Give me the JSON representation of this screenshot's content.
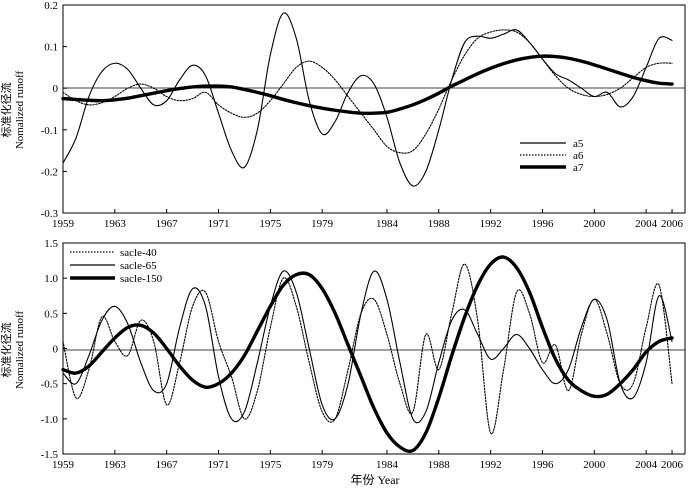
{
  "chart_data": [
    {
      "type": "line",
      "ylabel_cn": "标准化径流",
      "ylabel_en": "Nomalized runoff",
      "xlabel": "",
      "xlim": [
        1959,
        2007
      ],
      "ylim": [
        -0.3,
        0.2
      ],
      "xticks": [
        1959,
        1963,
        1967,
        1971,
        1975,
        1979,
        1984,
        1988,
        1992,
        1996,
        2000,
        2004,
        2006
      ],
      "yticks": [
        -0.3,
        -0.2,
        -0.1,
        0,
        0.1,
        0.2
      ],
      "ytick_labels": [
        "-0.3",
        "-0.2",
        "-0.1",
        "0",
        "0.1",
        "0.2"
      ],
      "legend_position": "lower-right",
      "series": [
        {
          "name": "a5",
          "style": "thin",
          "x": [
            1959,
            1960,
            1961,
            1962,
            1963,
            1964,
            1965,
            1966,
            1967,
            1968,
            1969,
            1970,
            1971,
            1972,
            1973,
            1974,
            1975,
            1976,
            1977,
            1978,
            1979,
            1980,
            1981,
            1982,
            1983,
            1984,
            1985,
            1986,
            1987,
            1988,
            1989,
            1990,
            1991,
            1992,
            1993,
            1994,
            1995,
            1996,
            1997,
            1998,
            1999,
            2000,
            2001,
            2002,
            2003,
            2004,
            2005,
            2006
          ],
          "y": [
            -0.18,
            -0.12,
            -0.02,
            0.04,
            0.06,
            0.045,
            0.0,
            -0.04,
            -0.03,
            0.02,
            0.055,
            0.03,
            -0.06,
            -0.15,
            -0.19,
            -0.1,
            0.08,
            0.18,
            0.12,
            -0.03,
            -0.11,
            -0.08,
            -0.01,
            0.03,
            0.01,
            -0.07,
            -0.18,
            -0.235,
            -0.2,
            -0.1,
            0.02,
            0.11,
            0.125,
            0.12,
            0.13,
            0.14,
            0.11,
            0.07,
            0.035,
            0.02,
            0.0,
            -0.02,
            -0.01,
            -0.045,
            -0.02,
            0.05,
            0.12,
            0.115
          ]
        },
        {
          "name": "a6",
          "style": "dotted",
          "x": [
            1959,
            1960,
            1961,
            1962,
            1963,
            1964,
            1965,
            1966,
            1967,
            1968,
            1969,
            1970,
            1971,
            1972,
            1973,
            1974,
            1975,
            1976,
            1977,
            1978,
            1979,
            1980,
            1981,
            1982,
            1983,
            1984,
            1985,
            1986,
            1987,
            1988,
            1989,
            1990,
            1991,
            1992,
            1993,
            1994,
            1995,
            1996,
            1997,
            1998,
            1999,
            2000,
            2001,
            2002,
            2003,
            2004,
            2005,
            2006
          ],
          "y": [
            -0.01,
            -0.03,
            -0.04,
            -0.035,
            -0.02,
            0.0,
            0.01,
            0.0,
            -0.02,
            -0.03,
            -0.025,
            -0.01,
            -0.04,
            -0.06,
            -0.07,
            -0.06,
            -0.03,
            0.01,
            0.05,
            0.065,
            0.05,
            0.02,
            -0.02,
            -0.06,
            -0.1,
            -0.14,
            -0.155,
            -0.15,
            -0.11,
            -0.05,
            0.02,
            0.08,
            0.12,
            0.135,
            0.14,
            0.135,
            0.11,
            0.07,
            0.03,
            0.0,
            -0.015,
            -0.02,
            -0.015,
            0.0,
            0.025,
            0.05,
            0.06,
            0.06
          ]
        },
        {
          "name": "a7",
          "style": "thick",
          "x": [
            1959,
            1960,
            1961,
            1962,
            1963,
            1964,
            1965,
            1966,
            1967,
            1968,
            1969,
            1970,
            1971,
            1972,
            1973,
            1974,
            1975,
            1976,
            1977,
            1978,
            1979,
            1980,
            1981,
            1982,
            1983,
            1984,
            1985,
            1986,
            1987,
            1988,
            1989,
            1990,
            1991,
            1992,
            1993,
            1994,
            1995,
            1996,
            1997,
            1998,
            1999,
            2000,
            2001,
            2002,
            2003,
            2004,
            2005,
            2006
          ],
          "y": [
            -0.025,
            -0.027,
            -0.029,
            -0.03,
            -0.028,
            -0.024,
            -0.018,
            -0.012,
            -0.006,
            -0.001,
            0.003,
            0.005,
            0.005,
            0.003,
            -0.003,
            -0.01,
            -0.018,
            -0.027,
            -0.035,
            -0.042,
            -0.048,
            -0.053,
            -0.057,
            -0.06,
            -0.06,
            -0.058,
            -0.05,
            -0.04,
            -0.027,
            -0.012,
            0.005,
            0.02,
            0.035,
            0.048,
            0.059,
            0.068,
            0.074,
            0.077,
            0.076,
            0.072,
            0.065,
            0.056,
            0.046,
            0.036,
            0.026,
            0.018,
            0.012,
            0.01
          ]
        }
      ]
    },
    {
      "type": "line",
      "ylabel_cn": "标准化径流",
      "ylabel_en": "Nomalized runoff",
      "xlabel": "年份 Year",
      "xlim": [
        1959,
        2007
      ],
      "ylim": [
        -1.5,
        1.5
      ],
      "xticks": [
        1959,
        1963,
        1967,
        1971,
        1975,
        1979,
        1984,
        1988,
        1992,
        1996,
        2000,
        2004,
        2006
      ],
      "yticks": [
        -1.5,
        -1.0,
        -0.5,
        0,
        0.5,
        1.0,
        1.5
      ],
      "ytick_labels": [
        "-1.5",
        "-1.0",
        "-0.5",
        "0",
        "0.5",
        "1.0",
        "1.5"
      ],
      "legend_position": "top-left",
      "series": [
        {
          "name": "sacle-40",
          "style": "dotted",
          "x": [
            1959,
            1960,
            1961,
            1962,
            1963,
            1964,
            1965,
            1966,
            1967,
            1968,
            1969,
            1970,
            1971,
            1972,
            1973,
            1974,
            1975,
            1976,
            1977,
            1978,
            1979,
            1980,
            1981,
            1982,
            1983,
            1984,
            1985,
            1986,
            1987,
            1988,
            1989,
            1990,
            1991,
            1992,
            1993,
            1994,
            1995,
            1996,
            1997,
            1998,
            1999,
            2000,
            2001,
            2002,
            2003,
            2004,
            2005,
            2006
          ],
          "y": [
            0.1,
            -0.7,
            -0.3,
            0.45,
            0.1,
            -0.1,
            0.4,
            0.1,
            -0.8,
            -0.2,
            0.6,
            0.8,
            0.1,
            -0.4,
            -1.0,
            -0.6,
            0.3,
            1.0,
            0.6,
            -0.2,
            -0.9,
            -1.0,
            -0.3,
            0.5,
            0.7,
            0.2,
            -0.5,
            -0.9,
            0.2,
            -0.3,
            0.5,
            1.2,
            0.4,
            -1.2,
            -0.3,
            0.8,
            0.5,
            -0.2,
            0.05,
            -0.6,
            0.2,
            0.7,
            0.2,
            -0.5,
            -0.5,
            0.3,
            0.9,
            -0.5
          ]
        },
        {
          "name": "sacle-65",
          "style": "thin",
          "x": [
            1959,
            1960,
            1961,
            1962,
            1963,
            1964,
            1965,
            1966,
            1967,
            1968,
            1969,
            1970,
            1971,
            1972,
            1973,
            1974,
            1975,
            1976,
            1977,
            1978,
            1979,
            1980,
            1981,
            1982,
            1983,
            1984,
            1985,
            1986,
            1987,
            1988,
            1989,
            1990,
            1991,
            1992,
            1993,
            1994,
            1995,
            1996,
            1997,
            1998,
            1999,
            2000,
            2001,
            2002,
            2003,
            2004,
            2005,
            2006
          ],
          "y": [
            -0.35,
            -0.5,
            -0.1,
            0.4,
            0.6,
            0.35,
            -0.2,
            -0.6,
            -0.5,
            0.3,
            0.85,
            0.6,
            -0.4,
            -1.0,
            -0.9,
            -0.2,
            0.6,
            1.1,
            0.8,
            0.0,
            -0.8,
            -1.0,
            -0.5,
            0.5,
            1.1,
            0.7,
            -0.2,
            -1.0,
            -0.9,
            -0.2,
            0.4,
            0.55,
            0.2,
            -0.15,
            0.0,
            0.2,
            0.0,
            -0.3,
            -0.5,
            -0.3,
            0.3,
            0.7,
            0.4,
            -0.5,
            -0.7,
            -0.2,
            0.75,
            0.1
          ]
        },
        {
          "name": "sacle-150",
          "style": "thick",
          "x": [
            1959,
            1960,
            1961,
            1962,
            1963,
            1964,
            1965,
            1966,
            1967,
            1968,
            1969,
            1970,
            1971,
            1972,
            1973,
            1974,
            1975,
            1976,
            1977,
            1978,
            1979,
            1980,
            1981,
            1982,
            1983,
            1984,
            1985,
            1986,
            1987,
            1988,
            1989,
            1990,
            1991,
            1992,
            1993,
            1994,
            1995,
            1996,
            1997,
            1998,
            1999,
            2000,
            2001,
            2002,
            2003,
            2004,
            2005,
            2006
          ],
          "y": [
            -0.3,
            -0.35,
            -0.25,
            -0.05,
            0.15,
            0.3,
            0.33,
            0.22,
            0.0,
            -0.25,
            -0.45,
            -0.55,
            -0.5,
            -0.35,
            -0.1,
            0.25,
            0.6,
            0.9,
            1.05,
            1.05,
            0.85,
            0.5,
            0.05,
            -0.4,
            -0.85,
            -1.2,
            -1.4,
            -1.45,
            -1.2,
            -0.7,
            -0.1,
            0.45,
            0.9,
            1.2,
            1.3,
            1.15,
            0.8,
            0.3,
            -0.15,
            -0.45,
            -0.6,
            -0.68,
            -0.65,
            -0.5,
            -0.3,
            -0.05,
            0.1,
            0.15
          ]
        }
      ]
    }
  ]
}
